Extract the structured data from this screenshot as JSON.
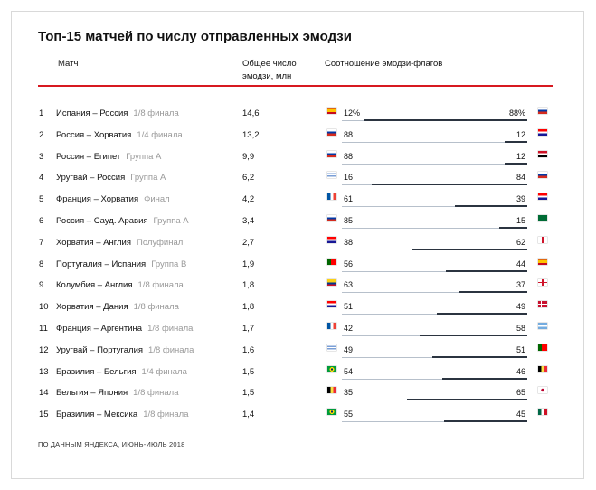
{
  "title": "Топ-15 матчей по числу отправленных эмодзи",
  "headers": {
    "match": "Матч",
    "total": "Общее число эмодзи, млн",
    "ratio": "Соотношение эмодзи-флагов"
  },
  "footer": "ПО ДАННЫМ ЯНДЕКСА, ИЮНЬ-ИЮЛЬ 2018",
  "chart_data": {
    "type": "table",
    "title": "Топ-15 матчей по числу отправленных эмодзи",
    "columns": [
      "Матч",
      "Общее число эмодзи, млн",
      "Соотношение эмодзи-флагов"
    ],
    "rows": [
      {
        "rank": "1",
        "match": "Испания – Россия",
        "stage": "1/8 финала",
        "total": "14,6",
        "left_pct": 12,
        "right_pct": 88,
        "left_label": "12%",
        "right_label": "88%",
        "left_flag": "spain-flag-icon",
        "right_flag": "russia-flag-icon"
      },
      {
        "rank": "2",
        "match": "Россия – Хорватия",
        "stage": "1/4 финала",
        "total": "13,2",
        "left_pct": 88,
        "right_pct": 12,
        "left_label": "88",
        "right_label": "12",
        "left_flag": "russia-flag-icon",
        "right_flag": "croatia-flag-icon"
      },
      {
        "rank": "3",
        "match": "Россия – Египет",
        "stage": "Группа А",
        "total": "9,9",
        "left_pct": 88,
        "right_pct": 12,
        "left_label": "88",
        "right_label": "12",
        "left_flag": "russia-flag-icon",
        "right_flag": "egypt-flag-icon"
      },
      {
        "rank": "4",
        "match": "Уругвай – Россия",
        "stage": "Группа А",
        "total": "6,2",
        "left_pct": 16,
        "right_pct": 84,
        "left_label": "16",
        "right_label": "84",
        "left_flag": "uruguay-flag-icon",
        "right_flag": "russia-flag-icon"
      },
      {
        "rank": "5",
        "match": "Франция – Хорватия",
        "stage": "Финал",
        "total": "4,2",
        "left_pct": 61,
        "right_pct": 39,
        "left_label": "61",
        "right_label": "39",
        "left_flag": "france-flag-icon",
        "right_flag": "croatia-flag-icon"
      },
      {
        "rank": "6",
        "match": "Россия – Сауд. Аравия",
        "stage": "Группа А",
        "total": "3,4",
        "left_pct": 85,
        "right_pct": 15,
        "left_label": "85",
        "right_label": "15",
        "left_flag": "russia-flag-icon",
        "right_flag": "saudi-arabia-flag-icon"
      },
      {
        "rank": "7",
        "match": "Хорватия – Англия",
        "stage": "Полуфинал",
        "total": "2,7",
        "left_pct": 38,
        "right_pct": 62,
        "left_label": "38",
        "right_label": "62",
        "left_flag": "croatia-flag-icon",
        "right_flag": "england-flag-icon"
      },
      {
        "rank": "8",
        "match": "Португалия – Испания",
        "stage": "Группа B",
        "total": "1,9",
        "left_pct": 56,
        "right_pct": 44,
        "left_label": "56",
        "right_label": "44",
        "left_flag": "portugal-flag-icon",
        "right_flag": "spain-flag-icon"
      },
      {
        "rank": "9",
        "match": "Колумбия – Англия",
        "stage": "1/8 финала",
        "total": "1,8",
        "left_pct": 63,
        "right_pct": 37,
        "left_label": "63",
        "right_label": "37",
        "left_flag": "colombia-flag-icon",
        "right_flag": "england-flag-icon"
      },
      {
        "rank": "10",
        "match": "Хорватия – Дания",
        "stage": "1/8 финала",
        "total": "1,8",
        "left_pct": 51,
        "right_pct": 49,
        "left_label": "51",
        "right_label": "49",
        "left_flag": "croatia-flag-icon",
        "right_flag": "denmark-flag-icon"
      },
      {
        "rank": "11",
        "match": "Франция – Аргентина",
        "stage": "1/8 финала",
        "total": "1,7",
        "left_pct": 42,
        "right_pct": 58,
        "left_label": "42",
        "right_label": "58",
        "left_flag": "france-flag-icon",
        "right_flag": "argentina-flag-icon"
      },
      {
        "rank": "12",
        "match": "Уругвай – Португалия",
        "stage": "1/8 финала",
        "total": "1,6",
        "left_pct": 49,
        "right_pct": 51,
        "left_label": "49",
        "right_label": "51",
        "left_flag": "uruguay-flag-icon",
        "right_flag": "portugal-flag-icon"
      },
      {
        "rank": "13",
        "match": "Бразилия – Бельгия",
        "stage": "1/4 финала",
        "total": "1,5",
        "left_pct": 54,
        "right_pct": 46,
        "left_label": "54",
        "right_label": "46",
        "left_flag": "brazil-flag-icon",
        "right_flag": "belgium-flag-icon"
      },
      {
        "rank": "14",
        "match": "Бельгия – Япония",
        "stage": "1/8 финала",
        "total": "1,5",
        "left_pct": 35,
        "right_pct": 65,
        "left_label": "35",
        "right_label": "65",
        "left_flag": "belgium-flag-icon",
        "right_flag": "japan-flag-icon"
      },
      {
        "rank": "15",
        "match": "Бразилия – Мексика",
        "stage": "1/8 финала",
        "total": "1,4",
        "left_pct": 55,
        "right_pct": 45,
        "left_label": "55",
        "right_label": "45",
        "left_flag": "brazil-flag-icon",
        "right_flag": "mexico-flag-icon"
      }
    ]
  },
  "colors": {
    "accent_line": "#d71920",
    "bar_left": "#b7c0cb",
    "bar_right": "#2b3440",
    "stage_text": "#999999"
  }
}
